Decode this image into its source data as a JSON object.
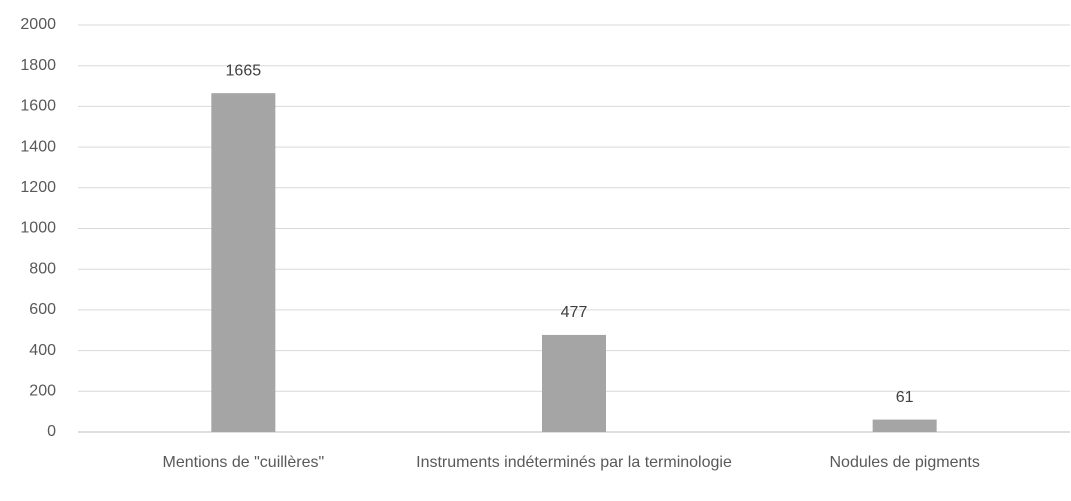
{
  "chart_data": {
    "type": "bar",
    "categories": [
      "Mentions de \"cuillères\"",
      "Instruments indéterminés par la terminologie",
      "Nodules de pigments"
    ],
    "values": [
      1665,
      477,
      61
    ],
    "color": "#a5a5a5",
    "ylim": [
      0,
      2000
    ],
    "yticks": [
      0,
      200,
      400,
      600,
      800,
      1000,
      1200,
      1400,
      1600,
      1800,
      2000
    ],
    "grid": true
  }
}
